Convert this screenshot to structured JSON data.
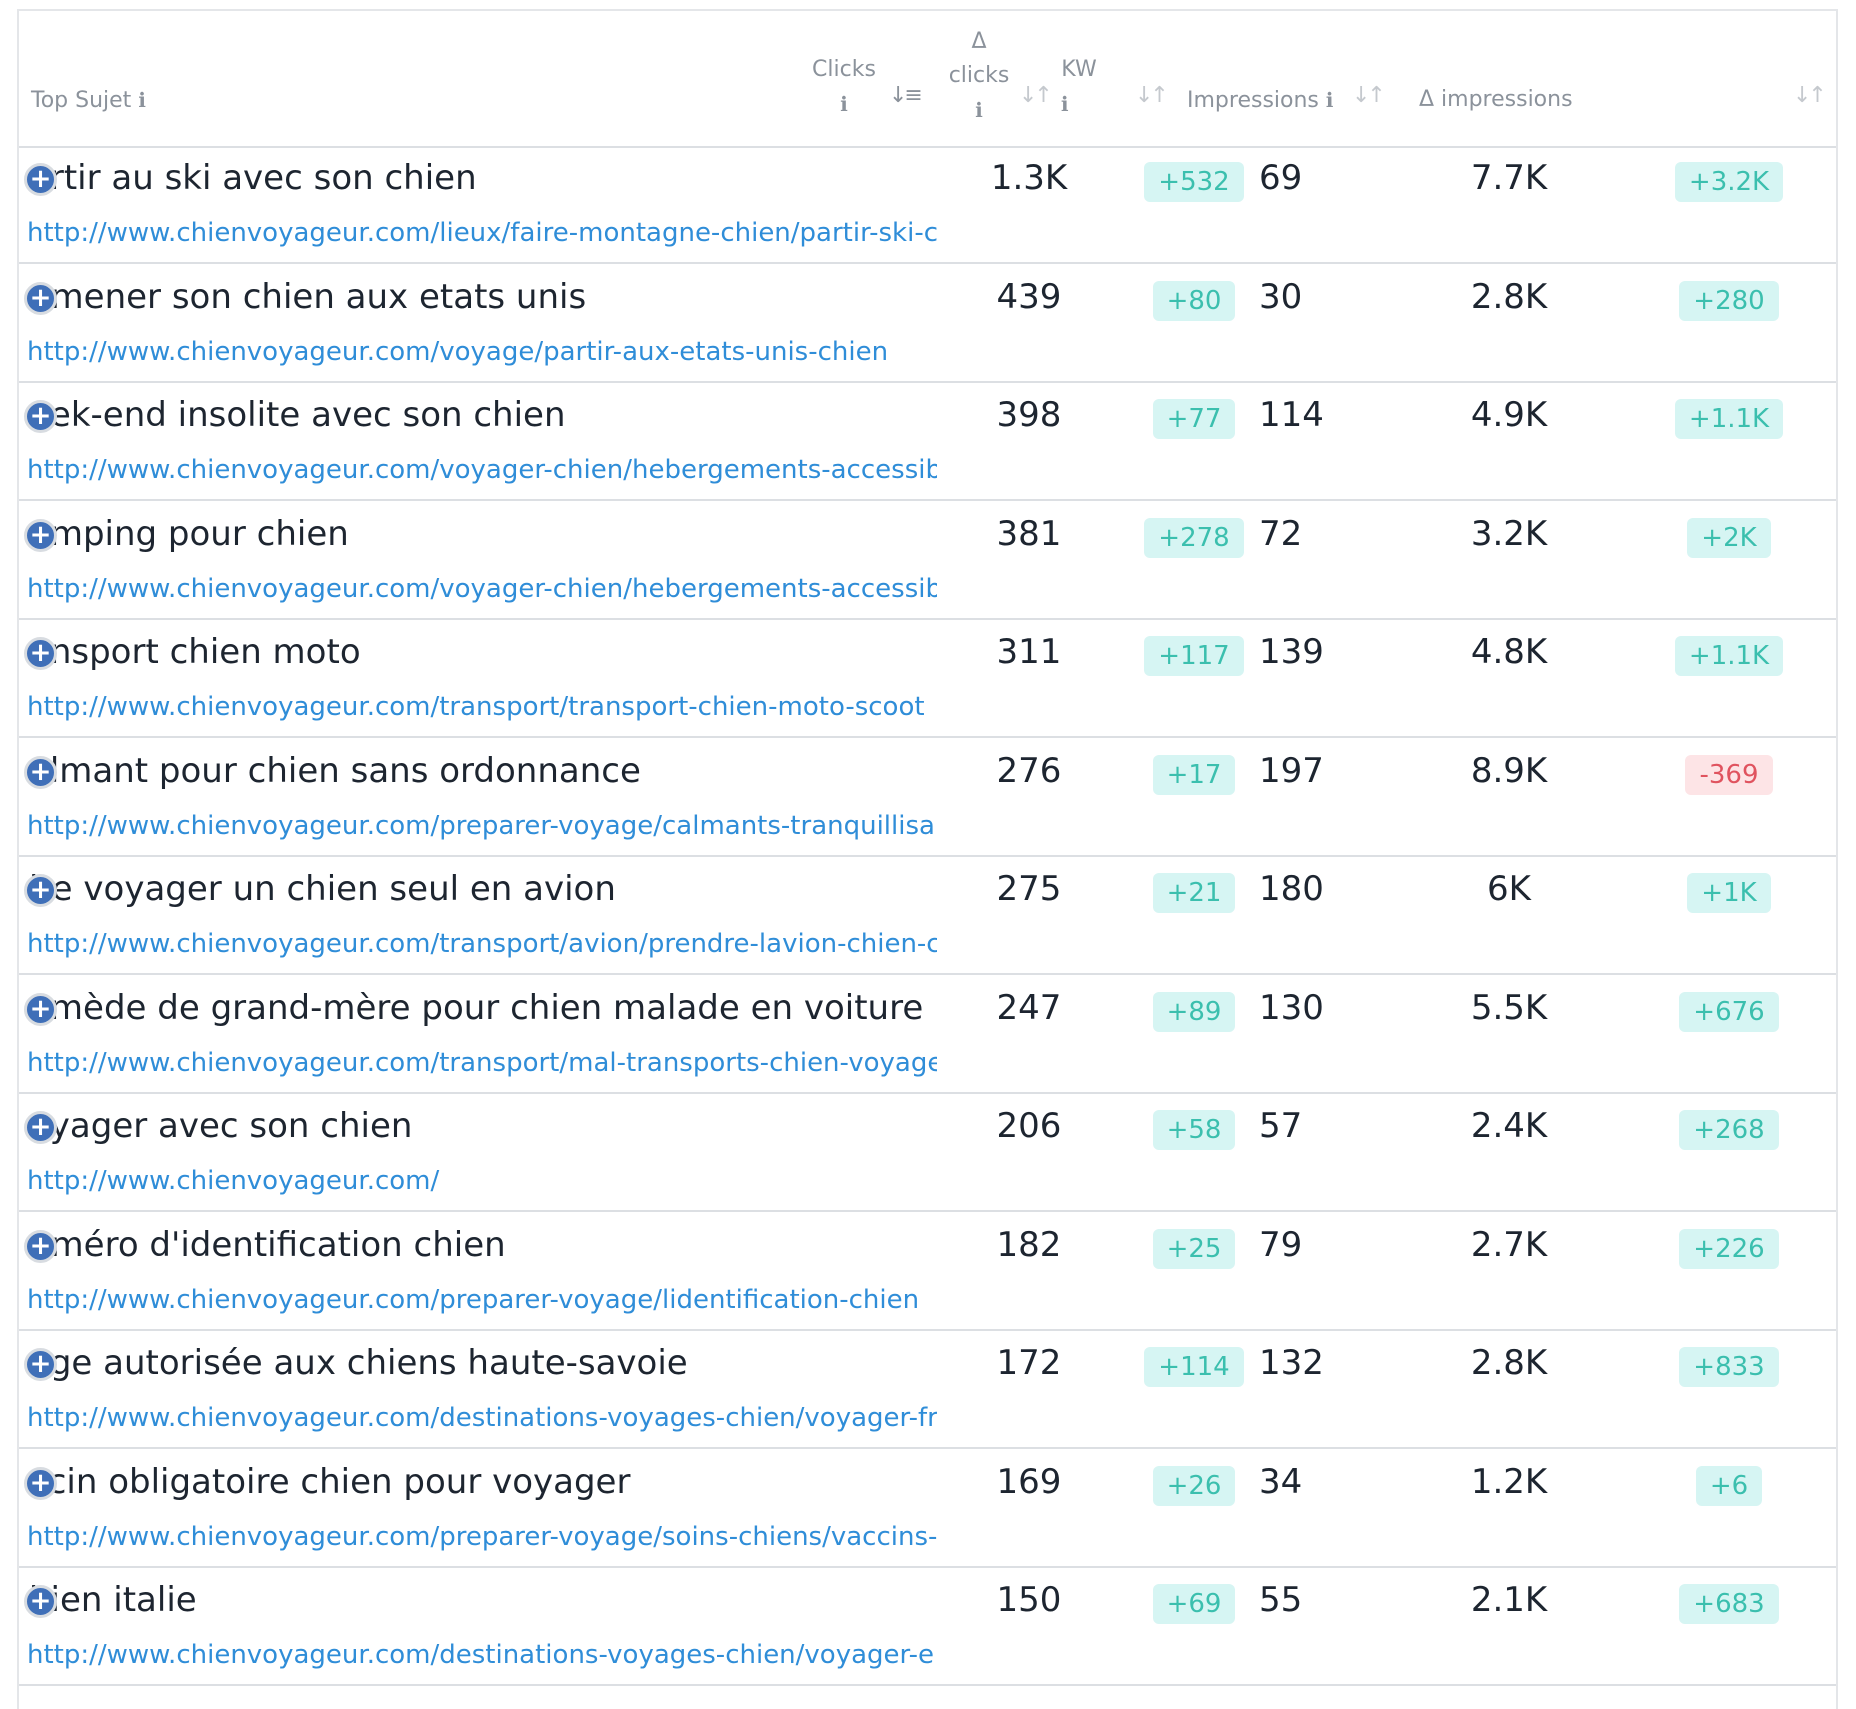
{
  "header": {
    "top_sujet": "Top Sujet",
    "clicks": "Clicks",
    "delta_clicks_symbol": "Δ",
    "delta_clicks": "clicks",
    "kw": "KW",
    "impressions": "Impressions",
    "delta_impressions": "Δ impressions",
    "info_glyph": "ℹ",
    "sort_glyph": "↓↑",
    "sort_active_glyph": "↓≡"
  },
  "rows": [
    {
      "subject": "artir au ski avec son chien",
      "url": "http://www.chienvoyageur.com/lieux/faire-montagne-chien/partir-ski-c",
      "clicks": "1.3K",
      "delta_clicks": "+532",
      "kw": "69",
      "impressions": "7.7K",
      "delta_impressions": "+3.2K",
      "delta_impressions_negative": false
    },
    {
      "subject": "nmener son chien aux etats unis",
      "url": "http://www.chienvoyageur.com/voyage/partir-aux-etats-unis-chien",
      "clicks": "439",
      "delta_clicks": "+80",
      "kw": "30",
      "impressions": "2.8K",
      "delta_impressions": "+280",
      "delta_impressions_negative": false
    },
    {
      "subject": "eek-end insolite avec son chien",
      "url": "http://www.chienvoyageur.com/voyager-chien/hebergements-accessib",
      "clicks": "398",
      "delta_clicks": "+77",
      "kw": "114",
      "impressions": "4.9K",
      "delta_impressions": "+1.1K",
      "delta_impressions_negative": false
    },
    {
      "subject": "amping pour chien",
      "url": "http://www.chienvoyageur.com/voyager-chien/hebergements-accessib",
      "clicks": "381",
      "delta_clicks": "+278",
      "kw": "72",
      "impressions": "3.2K",
      "delta_impressions": "+2K",
      "delta_impressions_negative": false
    },
    {
      "subject": "ansport chien moto",
      "url": "http://www.chienvoyageur.com/transport/transport-chien-moto-scoot",
      "clicks": "311",
      "delta_clicks": "+117",
      "kw": "139",
      "impressions": "4.8K",
      "delta_impressions": "+1.1K",
      "delta_impressions_negative": false
    },
    {
      "subject": "almant pour chien sans ordonnance",
      "url": "http://www.chienvoyageur.com/preparer-voyage/calmants-tranquillisar",
      "clicks": "276",
      "delta_clicks": "+17",
      "kw": "197",
      "impressions": "8.9K",
      "delta_impressions": "-369",
      "delta_impressions_negative": true
    },
    {
      "subject": "ire voyager un chien seul en avion",
      "url": "http://www.chienvoyageur.com/transport/avion/prendre-lavion-chien-c",
      "clicks": "275",
      "delta_clicks": "+21",
      "kw": "180",
      "impressions": "6K",
      "delta_impressions": "+1K",
      "delta_impressions_negative": false
    },
    {
      "subject": "emède de grand-mère pour chien malade en voiture",
      "url": "http://www.chienvoyageur.com/transport/mal-transports-chien-voyage",
      "clicks": "247",
      "delta_clicks": "+89",
      "kw": "130",
      "impressions": "5.5K",
      "delta_impressions": "+676",
      "delta_impressions_negative": false
    },
    {
      "subject": "oyager avec son chien",
      "url": "http://www.chienvoyageur.com/",
      "clicks": "206",
      "delta_clicks": "+58",
      "kw": "57",
      "impressions": "2.4K",
      "delta_impressions": "+268",
      "delta_impressions_negative": false
    },
    {
      "subject": "uméro d'identification chien",
      "url": "http://www.chienvoyageur.com/preparer-voyage/lidentification-chien",
      "clicks": "182",
      "delta_clicks": "+25",
      "kw": "79",
      "impressions": "2.7K",
      "delta_impressions": "+226",
      "delta_impressions_negative": false
    },
    {
      "subject": "age autorisée aux chiens haute-savoie",
      "url": "http://www.chienvoyageur.com/destinations-voyages-chien/voyager-fr",
      "clicks": "172",
      "delta_clicks": "+114",
      "kw": "132",
      "impressions": "2.8K",
      "delta_impressions": "+833",
      "delta_impressions_negative": false
    },
    {
      "subject": "ccin obligatoire chien pour voyager",
      "url": "http://www.chienvoyageur.com/preparer-voyage/soins-chiens/vaccins-",
      "clicks": "169",
      "delta_clicks": "+26",
      "kw": "34",
      "impressions": "1.2K",
      "delta_impressions": "+6",
      "delta_impressions_negative": false
    },
    {
      "subject": "hien italie",
      "url": "http://www.chienvoyageur.com/destinations-voyages-chien/voyager-e",
      "clicks": "150",
      "delta_clicks": "+69",
      "kw": "55",
      "impressions": "2.1K",
      "delta_impressions": "+683",
      "delta_impressions_negative": false
    }
  ],
  "colors": {
    "positive_badge_bg": "#d6f5f3",
    "positive_badge_text": "#3bbfae",
    "negative_badge_bg": "#fde4e6",
    "negative_badge_text": "#e0535f",
    "url_link": "#2f8dd8",
    "expand_icon": "#3f6fb8"
  },
  "icons": {
    "expand": "plus-circle-icon",
    "info": "info-icon",
    "sort": "sort-icon"
  }
}
